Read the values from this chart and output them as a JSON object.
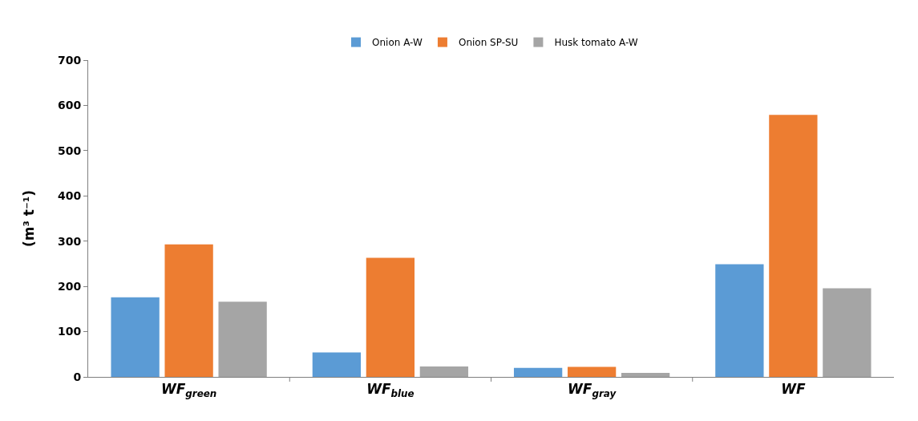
{
  "chart_data": {
    "type": "bar",
    "ylabel": "(m³ t⁻¹)",
    "categories": [
      "WF$_{green}$",
      "WF$_{blue}$",
      "WF$_{gray}$",
      "WF"
    ],
    "series": [
      {
        "name": "Onion A-W",
        "color": "#5b9bd5",
        "values": [
          176,
          54,
          20,
          249
        ]
      },
      {
        "name": "Onion SP-SU",
        "color": "#ed7d31",
        "values": [
          293,
          263,
          22,
          579
        ]
      },
      {
        "name": "Husk tomato A-W",
        "color": "#a5a5a5",
        "values": [
          166,
          23,
          9,
          196
        ]
      }
    ],
    "ylim": [
      0,
      700
    ],
    "yticks": [
      0,
      100,
      200,
      300,
      400,
      500,
      600,
      700
    ],
    "legend": "top"
  }
}
